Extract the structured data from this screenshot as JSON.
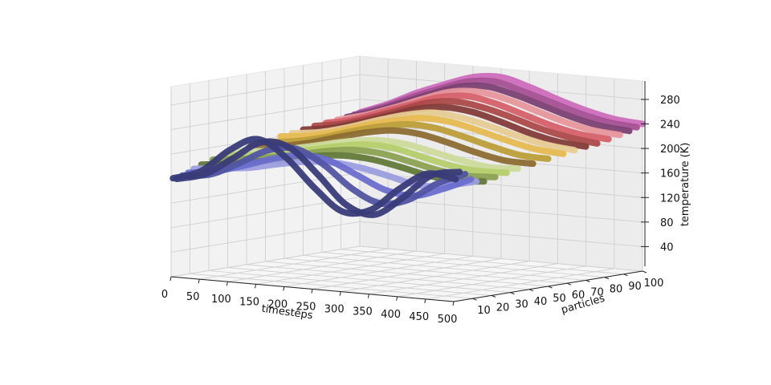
{
  "chart_data": {
    "type": "line",
    "projection": "3d",
    "title": "",
    "xlabel": "timesteps",
    "ylabel": "particles",
    "zlabel": "temperature (K)",
    "xlim": [
      0,
      500
    ],
    "ylim": [
      0,
      100
    ],
    "zlim": [
      0,
      310
    ],
    "xticks": [
      "0",
      "50",
      "100",
      "150",
      "200",
      "250",
      "300",
      "350",
      "400",
      "450",
      "500"
    ],
    "yticks": [
      "10",
      "20",
      "30",
      "40",
      "50",
      "60",
      "70",
      "80",
      "90",
      "100"
    ],
    "zticks": [
      "40",
      "80",
      "120",
      "160",
      "200",
      "240",
      "280"
    ],
    "grid": true,
    "colormap": "tab20b",
    "series": [
      {
        "particle": 1,
        "color": "#393b79",
        "values": [
          160,
          176,
          214,
          236,
          210,
          165,
          130,
          137,
          175,
          204,
          199
        ]
      },
      {
        "particle": 3,
        "color": "#393b79",
        "values": [
          158,
          170,
          200,
          230,
          225,
          185,
          140,
          128,
          160,
          200,
          210
        ]
      },
      {
        "particle": 6,
        "color": "#5254a3",
        "values": [
          162,
          168,
          190,
          215,
          222,
          200,
          165,
          145,
          155,
          185,
          205
        ]
      },
      {
        "particle": 9,
        "color": "#6b6ecf",
        "values": [
          165,
          172,
          185,
          200,
          210,
          205,
          185,
          165,
          160,
          175,
          195
        ]
      },
      {
        "particle": 12,
        "color": "#9c9ede",
        "values": [
          170,
          175,
          180,
          190,
          198,
          200,
          195,
          185,
          175,
          180,
          190
        ]
      },
      {
        "particle": 16,
        "color": "#637939",
        "values": [
          175,
          180,
          188,
          196,
          205,
          210,
          208,
          200,
          190,
          185,
          188
        ]
      },
      {
        "particle": 22,
        "color": "#8ca252",
        "values": [
          180,
          185,
          192,
          200,
          210,
          216,
          214,
          205,
          195,
          190,
          192
        ]
      },
      {
        "particle": 28,
        "color": "#b5cf6b",
        "values": [
          185,
          188,
          195,
          205,
          215,
          222,
          220,
          210,
          200,
          195,
          196
        ]
      },
      {
        "particle": 34,
        "color": "#cedb9c",
        "values": [
          188,
          192,
          200,
          210,
          220,
          226,
          224,
          215,
          205,
          198,
          200
        ]
      },
      {
        "particle": 42,
        "color": "#8c6d31",
        "values": [
          192,
          196,
          205,
          218,
          230,
          238,
          236,
          226,
          214,
          205,
          204
        ]
      },
      {
        "particle": 50,
        "color": "#bd9e39",
        "values": [
          195,
          200,
          210,
          224,
          236,
          244,
          242,
          232,
          220,
          210,
          208
        ]
      },
      {
        "particle": 58,
        "color": "#e7ba52",
        "values": [
          200,
          205,
          216,
          230,
          242,
          250,
          248,
          238,
          226,
          216,
          212
        ]
      },
      {
        "particle": 64,
        "color": "#e7cb94",
        "values": [
          202,
          208,
          220,
          235,
          248,
          256,
          252,
          242,
          230,
          220,
          215
        ]
      },
      {
        "particle": 70,
        "color": "#843c39",
        "values": [
          205,
          212,
          225,
          240,
          255,
          262,
          258,
          246,
          232,
          222,
          218
        ]
      },
      {
        "particle": 76,
        "color": "#ad494a",
        "values": [
          208,
          216,
          230,
          246,
          262,
          268,
          262,
          250,
          236,
          226,
          220
        ]
      },
      {
        "particle": 82,
        "color": "#d6616b",
        "values": [
          210,
          220,
          236,
          252,
          268,
          274,
          266,
          252,
          238,
          228,
          224
        ]
      },
      {
        "particle": 88,
        "color": "#e7969c",
        "values": [
          212,
          224,
          240,
          258,
          274,
          278,
          270,
          256,
          242,
          232,
          228
        ]
      },
      {
        "particle": 93,
        "color": "#7b4173",
        "values": [
          214,
          228,
          246,
          264,
          280,
          284,
          274,
          260,
          246,
          236,
          232
        ]
      },
      {
        "particle": 97,
        "color": "#a55194",
        "values": [
          216,
          232,
          252,
          270,
          286,
          290,
          278,
          264,
          250,
          240,
          236
        ]
      },
      {
        "particle": 100,
        "color": "#ce6dbd",
        "values": [
          218,
          236,
          258,
          276,
          292,
          296,
          284,
          268,
          254,
          244,
          240
        ]
      }
    ],
    "x": [
      0,
      50,
      100,
      150,
      200,
      250,
      300,
      350,
      400,
      450,
      500
    ]
  }
}
